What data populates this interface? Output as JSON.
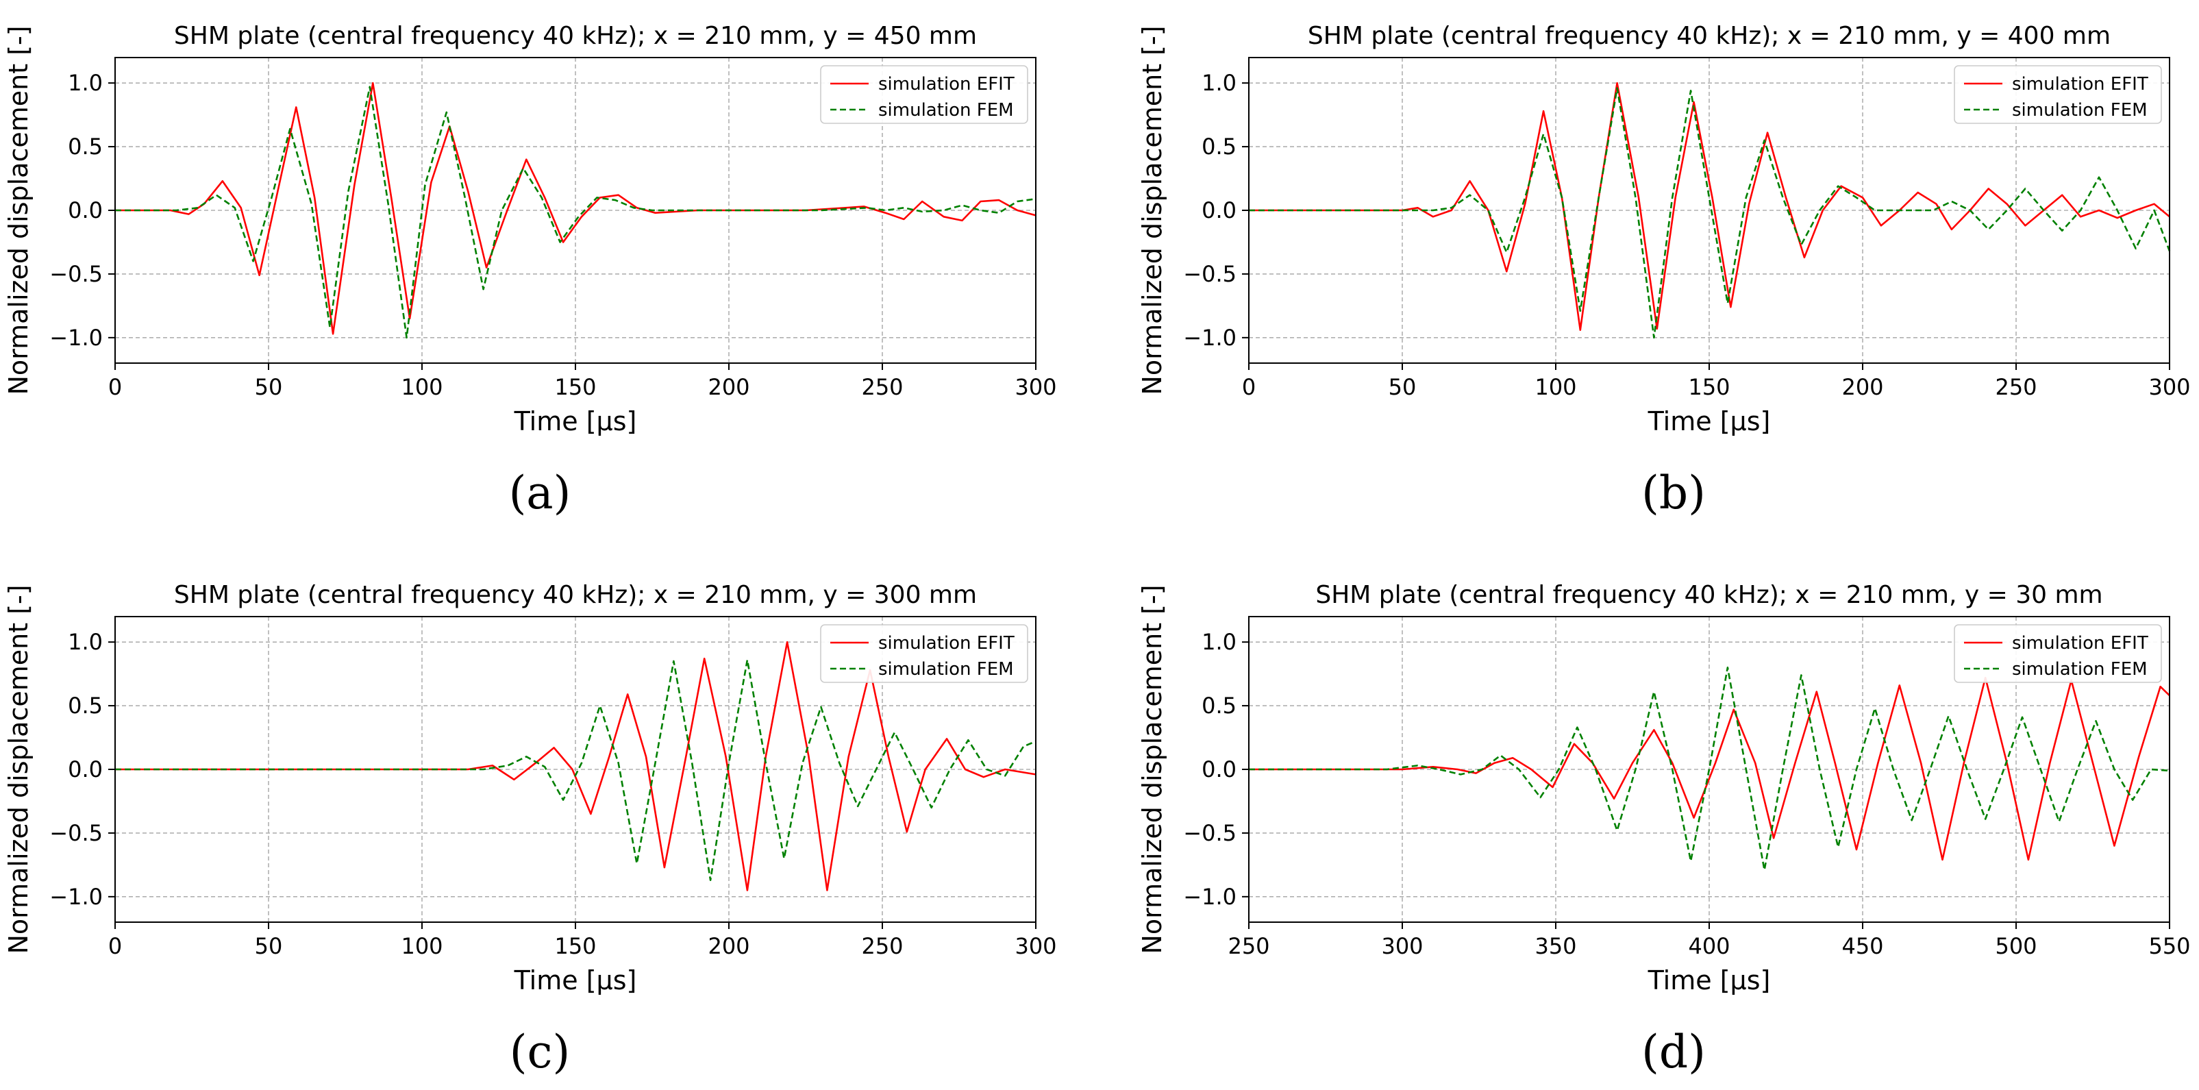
{
  "figure": {
    "captions": [
      "(a)",
      "(b)",
      "(c)",
      "(d)"
    ],
    "colors": {
      "efit": "#ff0000",
      "fem": "#008000",
      "grid": "#b0b0b0"
    }
  },
  "chart_data": [
    {
      "id": "a",
      "type": "line",
      "title": "SHM plate (central frequency 40 kHz); x = 210 mm, y = 450 mm",
      "xlabel": "Time [μs]",
      "ylabel": "Normalized displacement [-]",
      "xlim": [
        0,
        300
      ],
      "ylim": [
        -1.2,
        1.2
      ],
      "xticks": [
        0,
        50,
        100,
        150,
        200,
        250,
        300
      ],
      "xtick_labels": [
        "0",
        "50",
        "100",
        "150",
        "200",
        "250",
        "300"
      ],
      "yticks": [
        -1.0,
        -0.5,
        0.0,
        0.5,
        1.0
      ],
      "ytick_labels": [
        "−1.0",
        "−0.5",
        "0.0",
        "0.5",
        "1.0"
      ],
      "grid": true,
      "legend_position": "top-right",
      "series": [
        {
          "name": "simulation EFIT",
          "style": "solid",
          "color": "#ff0000",
          "x": [
            0,
            18,
            24,
            29,
            35,
            41,
            47,
            53,
            59,
            65,
            71,
            78,
            84,
            90,
            96,
            103,
            109,
            115,
            121,
            127,
            134,
            140,
            146,
            152,
            158,
            164,
            170,
            176,
            190,
            210,
            225,
            238,
            244,
            251,
            257,
            263,
            270,
            276,
            282,
            288,
            294,
            300
          ],
          "y": [
            0,
            0,
            -0.03,
            0.05,
            0.23,
            0.02,
            -0.51,
            0.15,
            0.81,
            0.1,
            -0.97,
            0.2,
            1.0,
            0.1,
            -0.85,
            0.22,
            0.66,
            0.15,
            -0.45,
            -0.05,
            0.4,
            0.1,
            -0.25,
            -0.05,
            0.1,
            0.12,
            0.02,
            -0.02,
            0.0,
            0.0,
            0.0,
            0.02,
            0.03,
            -0.02,
            -0.07,
            0.07,
            -0.05,
            -0.08,
            0.07,
            0.08,
            0.0,
            -0.04
          ]
        },
        {
          "name": "simulation FEM",
          "style": "dashed",
          "color": "#008000",
          "x": [
            0,
            20,
            27,
            33,
            39,
            45,
            51,
            57,
            64,
            70,
            76,
            83,
            89,
            95,
            101,
            108,
            114,
            120,
            126,
            133,
            139,
            145,
            151,
            157,
            163,
            169,
            175,
            195,
            230,
            245,
            251,
            257,
            263,
            270,
            276,
            282,
            288,
            294,
            300
          ],
          "y": [
            0,
            0,
            0.02,
            0.12,
            0.02,
            -0.4,
            0.1,
            0.64,
            0.05,
            -0.92,
            0.15,
            0.97,
            0.05,
            -1.0,
            0.2,
            0.77,
            0.1,
            -0.62,
            0.0,
            0.33,
            0.1,
            -0.25,
            -0.05,
            0.1,
            0.08,
            0.02,
            0.0,
            0.0,
            0.0,
            0.02,
            0.0,
            0.02,
            -0.01,
            0.0,
            0.04,
            0.0,
            -0.02,
            0.07,
            0.09
          ]
        }
      ]
    },
    {
      "id": "b",
      "type": "line",
      "title": "SHM plate (central frequency 40 kHz); x = 210 mm, y = 400 mm",
      "xlabel": "Time [μs]",
      "ylabel": "Normalized displacement [-]",
      "xlim": [
        0,
        300
      ],
      "ylim": [
        -1.2,
        1.2
      ],
      "xticks": [
        0,
        50,
        100,
        150,
        200,
        250,
        300
      ],
      "xtick_labels": [
        "0",
        "50",
        "100",
        "150",
        "200",
        "250",
        "300"
      ],
      "yticks": [
        -1.0,
        -0.5,
        0.0,
        0.5,
        1.0
      ],
      "ytick_labels": [
        "−1.0",
        "−0.5",
        "0.0",
        "0.5",
        "1.0"
      ],
      "grid": true,
      "legend_position": "top-right",
      "series": [
        {
          "name": "simulation EFIT",
          "style": "solid",
          "color": "#ff0000",
          "x": [
            0,
            50,
            55,
            60,
            66,
            72,
            78,
            84,
            90,
            96,
            102,
            108,
            114,
            120,
            127,
            133,
            139,
            145,
            151,
            157,
            163,
            169,
            175,
            181,
            187,
            193,
            200,
            206,
            212,
            218,
            224,
            229,
            235,
            241,
            247,
            253,
            259,
            265,
            271,
            277,
            283,
            289,
            295,
            300
          ],
          "y": [
            0,
            0,
            0.02,
            -0.05,
            0.0,
            0.23,
            0.0,
            -0.48,
            0.05,
            0.78,
            0.1,
            -0.94,
            0.1,
            1.0,
            0.1,
            -0.93,
            0.1,
            0.85,
            0.1,
            -0.76,
            0.05,
            0.61,
            0.1,
            -0.37,
            0.0,
            0.19,
            0.1,
            -0.12,
            0.0,
            0.14,
            0.05,
            -0.15,
            0.0,
            0.17,
            0.05,
            -0.12,
            0.0,
            0.12,
            -0.05,
            0.0,
            -0.06,
            0.0,
            0.05,
            -0.05
          ]
        },
        {
          "name": "simulation FEM",
          "style": "dashed",
          "color": "#008000",
          "x": [
            0,
            55,
            60,
            66,
            72,
            78,
            84,
            90,
            96,
            102,
            108,
            114,
            120,
            126,
            132,
            138,
            144,
            150,
            156,
            162,
            168,
            174,
            180,
            186,
            192,
            198,
            204,
            210,
            217,
            223,
            229,
            235,
            241,
            247,
            253,
            259,
            265,
            271,
            277,
            283,
            289,
            295,
            300
          ],
          "y": [
            0,
            0,
            0.0,
            0.02,
            0.12,
            0.0,
            -0.33,
            0.1,
            0.6,
            0.1,
            -0.79,
            0.1,
            0.96,
            0.1,
            -1.0,
            0.1,
            0.94,
            0.1,
            -0.73,
            0.1,
            0.55,
            0.1,
            -0.27,
            0.0,
            0.19,
            0.1,
            0.0,
            0.0,
            0.0,
            0.0,
            0.07,
            0.0,
            -0.15,
            0.0,
            0.17,
            0.0,
            -0.16,
            0.0,
            0.26,
            0.0,
            -0.3,
            0.0,
            -0.32
          ]
        }
      ]
    },
    {
      "id": "c",
      "type": "line",
      "title": "SHM plate (central frequency 40 kHz); x = 210 mm, y = 300 mm",
      "xlabel": "Time [μs]",
      "ylabel": "Normalized displacement [-]",
      "xlim": [
        0,
        300
      ],
      "ylim": [
        -1.2,
        1.2
      ],
      "xticks": [
        0,
        50,
        100,
        150,
        200,
        250,
        300
      ],
      "xtick_labels": [
        "0",
        "50",
        "100",
        "150",
        "200",
        "250",
        "300"
      ],
      "yticks": [
        -1.0,
        -0.5,
        0.0,
        0.5,
        1.0
      ],
      "ytick_labels": [
        "−1.0",
        "−0.5",
        "0.0",
        "0.5",
        "1.0"
      ],
      "grid": true,
      "legend_position": "top-right",
      "series": [
        {
          "name": "simulation EFIT",
          "style": "solid",
          "color": "#ff0000",
          "x": [
            0,
            115,
            123,
            130,
            137,
            143,
            149,
            155,
            161,
            167,
            173,
            179,
            186,
            192,
            199,
            206,
            212,
            219,
            226,
            232,
            239,
            246,
            252,
            258,
            264,
            271,
            277,
            283,
            290,
            300
          ],
          "y": [
            0,
            0,
            0.03,
            -0.08,
            0.05,
            0.17,
            0.0,
            -0.35,
            0.1,
            0.59,
            0.1,
            -0.77,
            0.1,
            0.87,
            0.1,
            -0.95,
            0.1,
            1.0,
            0.1,
            -0.95,
            0.1,
            0.78,
            0.1,
            -0.49,
            0.0,
            0.24,
            0.0,
            -0.06,
            0.0,
            -0.04
          ]
        },
        {
          "name": "simulation FEM",
          "style": "dashed",
          "color": "#008000",
          "x": [
            0,
            120,
            128,
            134,
            140,
            146,
            152,
            158,
            164,
            170,
            176,
            182,
            188,
            194,
            200,
            206,
            212,
            218,
            224,
            230,
            236,
            242,
            248,
            254,
            260,
            266,
            272,
            278,
            284,
            290,
            296,
            300
          ],
          "y": [
            0,
            0,
            0.03,
            0.1,
            0.02,
            -0.24,
            0.05,
            0.5,
            0.05,
            -0.74,
            0.05,
            0.85,
            0.05,
            -0.87,
            0.05,
            0.86,
            0.05,
            -0.7,
            0.05,
            0.49,
            0.05,
            -0.29,
            0.0,
            0.29,
            0.0,
            -0.3,
            0.0,
            0.23,
            0.0,
            -0.05,
            0.18,
            0.22
          ]
        }
      ]
    },
    {
      "id": "d",
      "type": "line",
      "title": "SHM plate (central frequency 40 kHz); x = 210 mm, y = 30 mm",
      "xlabel": "Time [μs]",
      "ylabel": "Normalized displacement [-]",
      "xlim": [
        250,
        550
      ],
      "ylim": [
        -1.2,
        1.2
      ],
      "xticks": [
        250,
        300,
        350,
        400,
        450,
        500,
        550
      ],
      "xtick_labels": [
        "250",
        "300",
        "350",
        "400",
        "450",
        "500",
        "550"
      ],
      "yticks": [
        -1.0,
        -0.5,
        0.0,
        0.5,
        1.0
      ],
      "ytick_labels": [
        "−1.0",
        "−0.5",
        "0.0",
        "0.5",
        "1.0"
      ],
      "grid": true,
      "legend_position": "top-right",
      "series": [
        {
          "name": "simulation EFIT",
          "style": "solid",
          "color": "#ff0000",
          "x": [
            250,
            290,
            300,
            310,
            318,
            324,
            330,
            336,
            342,
            349,
            356,
            362,
            369,
            375,
            382,
            388,
            395,
            402,
            408,
            415,
            421,
            428,
            435,
            441,
            448,
            455,
            462,
            469,
            476,
            483,
            490,
            497,
            504,
            511,
            518,
            525,
            532,
            540,
            547,
            550
          ],
          "y": [
            0,
            0,
            0.0,
            0.02,
            0.0,
            -0.03,
            0.05,
            0.09,
            0.0,
            -0.14,
            0.2,
            0.05,
            -0.23,
            0.05,
            0.31,
            0.05,
            -0.38,
            0.05,
            0.47,
            0.05,
            -0.54,
            0.05,
            0.61,
            0.05,
            -0.63,
            0.05,
            0.66,
            0.05,
            -0.71,
            0.05,
            0.72,
            0.05,
            -0.71,
            0.05,
            0.7,
            0.05,
            -0.6,
            0.1,
            0.65,
            0.58
          ]
        },
        {
          "name": "simulation FEM",
          "style": "dashed",
          "color": "#008000",
          "x": [
            250,
            295,
            305,
            312,
            319,
            326,
            332,
            338,
            345,
            351,
            357,
            363,
            370,
            376,
            382,
            388,
            394,
            400,
            406,
            412,
            418,
            424,
            430,
            436,
            442,
            448,
            454,
            460,
            466,
            472,
            478,
            484,
            490,
            496,
            502,
            508,
            514,
            520,
            526,
            532,
            538,
            544,
            550
          ],
          "y": [
            0,
            0,
            0.03,
            0.0,
            -0.04,
            0.0,
            0.11,
            0.0,
            -0.22,
            0.0,
            0.33,
            0.0,
            -0.48,
            0.0,
            0.61,
            0.0,
            -0.72,
            0.0,
            0.8,
            0.0,
            -0.79,
            0.0,
            0.74,
            0.0,
            -0.61,
            0.0,
            0.48,
            0.0,
            -0.4,
            0.0,
            0.42,
            0.0,
            -0.39,
            0.0,
            0.41,
            0.0,
            -0.41,
            0.0,
            0.38,
            0.0,
            -0.24,
            0.0,
            -0.01
          ]
        }
      ]
    }
  ]
}
